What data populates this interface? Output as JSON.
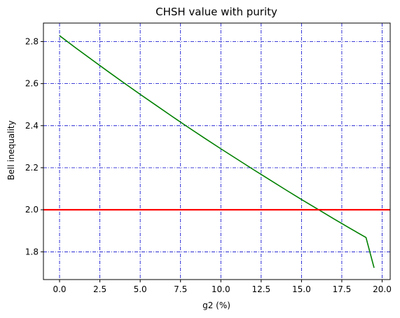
{
  "chart_data": {
    "type": "line",
    "title": "CHSH value with purity",
    "xlabel": "g2 (%)",
    "ylabel": "Bell inequality",
    "xlim": [
      -1.0,
      20.5
    ],
    "ylim": [
      1.668,
      2.888
    ],
    "xticks": [
      0.0,
      2.5,
      5.0,
      7.5,
      10.0,
      12.5,
      15.0,
      17.5,
      20.0
    ],
    "xtick_labels": [
      "0.0",
      "2.5",
      "5.0",
      "7.5",
      "10.0",
      "12.5",
      "15.0",
      "17.5",
      "20.0"
    ],
    "yticks": [
      1.8,
      2.0,
      2.2,
      2.4,
      2.6,
      2.8
    ],
    "ytick_labels": [
      "1.8",
      "2.0",
      "2.2",
      "2.4",
      "2.6",
      "2.8"
    ],
    "grid": true,
    "grid_style": "dash-dot",
    "grid_color": "#0000cc",
    "legend": false,
    "series": [
      {
        "color": "#008000",
        "style": "solid",
        "x": [
          0,
          1,
          2,
          3,
          4,
          5,
          6,
          7,
          8,
          9,
          10,
          11,
          12,
          13,
          14,
          15,
          16,
          17,
          18,
          19,
          19.5
        ],
        "y": [
          2.828,
          2.77,
          2.714,
          2.658,
          2.603,
          2.549,
          2.496,
          2.443,
          2.391,
          2.34,
          2.29,
          2.241,
          2.192,
          2.144,
          2.096,
          2.049,
          2.003,
          1.957,
          1.912,
          1.868,
          1.724
        ]
      },
      {
        "color": "#ff0000",
        "style": "solid",
        "x": [
          -1.0,
          20.5
        ],
        "y": [
          2.0,
          2.0
        ]
      }
    ]
  }
}
